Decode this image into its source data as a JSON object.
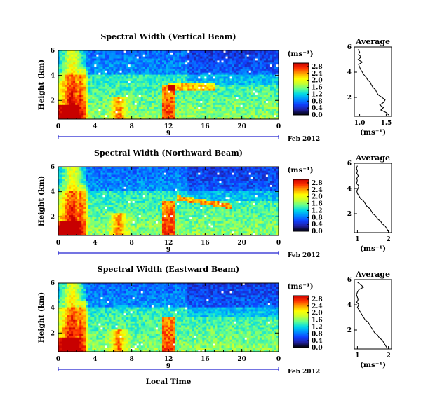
{
  "chart_data": [
    {
      "type": "heatmap",
      "title": "Spectral Width (Vertical Beam)",
      "ylabel": "Height (km)",
      "xlabel": "Local Time",
      "x_ticks": [
        "0",
        "4",
        "8",
        "12",
        "16",
        "20",
        "0"
      ],
      "y_ticks": [
        "2",
        "4",
        "6"
      ],
      "xlim": [
        0,
        24
      ],
      "ylim": [
        0.5,
        6.0
      ],
      "day_label": "9",
      "month_label": "Feb 2012",
      "colorbar": {
        "unit": "(ms⁻¹)",
        "ticks": [
          "0.0",
          "0.4",
          "0.8",
          "1.2",
          "1.6",
          "2.0",
          "2.4",
          "2.8"
        ],
        "range": [
          0,
          3.0
        ]
      },
      "profile": {
        "title": "Average",
        "xlabel": "(ms⁻¹)",
        "x_ticks": [
          "1.0",
          "1.5"
        ],
        "xlim": [
          0.9,
          1.6
        ],
        "y_ticks": [
          "2",
          "4",
          "6"
        ],
        "ylim": [
          0.5,
          6.0
        ],
        "height": [
          0.6,
          0.8,
          1.0,
          1.2,
          1.4,
          1.6,
          1.8,
          2.0,
          2.2,
          2.4,
          2.6,
          2.8,
          3.0,
          3.2,
          3.4,
          3.6,
          3.8,
          4.0,
          4.2,
          4.4,
          4.6,
          4.8,
          5.0,
          5.2,
          5.4,
          5.6,
          5.8
        ],
        "width": [
          1.55,
          1.5,
          1.4,
          1.45,
          1.38,
          1.45,
          1.48,
          1.42,
          1.35,
          1.32,
          1.3,
          1.25,
          1.22,
          1.2,
          1.15,
          1.12,
          1.08,
          1.05,
          1.02,
          1.0,
          0.98,
          1.05,
          0.97,
          1.03,
          0.98,
          1.0,
          0.97
        ]
      }
    },
    {
      "type": "heatmap",
      "title": "Spectral Width (Northward Beam)",
      "ylabel": "Height (km)",
      "xlabel": "Local Time",
      "x_ticks": [
        "0",
        "4",
        "8",
        "12",
        "16",
        "20",
        "0"
      ],
      "y_ticks": [
        "2",
        "4",
        "6"
      ],
      "xlim": [
        0,
        24
      ],
      "ylim": [
        0.5,
        6.0
      ],
      "day_label": "9",
      "month_label": "Feb 2012",
      "colorbar": {
        "unit": "(ms⁻¹)",
        "ticks": [
          "0.0",
          "0.4",
          "0.8",
          "1.2",
          "1.6",
          "2.0",
          "2.4",
          "2.8"
        ],
        "range": [
          0,
          3.0
        ]
      },
      "profile": {
        "title": "Average",
        "xlabel": "(ms⁻¹)",
        "x_ticks": [
          "1",
          "2"
        ],
        "xlim": [
          0.9,
          2.1
        ],
        "y_ticks": [
          "2",
          "4",
          "6"
        ],
        "ylim": [
          0.5,
          6.0
        ],
        "height": [
          0.6,
          0.8,
          1.0,
          1.2,
          1.4,
          1.6,
          1.8,
          2.0,
          2.2,
          2.4,
          2.6,
          2.8,
          3.0,
          3.2,
          3.4,
          3.6,
          3.8,
          4.0,
          4.2,
          4.4,
          4.6,
          4.8,
          5.0,
          5.2,
          5.4,
          5.6,
          5.8
        ],
        "width": [
          2.0,
          1.95,
          1.9,
          1.8,
          1.75,
          1.65,
          1.6,
          1.5,
          1.45,
          1.4,
          1.3,
          1.25,
          1.2,
          1.1,
          1.05,
          1.0,
          0.98,
          1.02,
          1.05,
          0.97,
          1.0,
          0.98,
          1.03,
          0.98,
          1.0,
          0.97,
          1.0
        ]
      }
    },
    {
      "type": "heatmap",
      "title": "Spectral Width (Eastward Beam)",
      "ylabel": "Height (km)",
      "xlabel": "Local Time",
      "x_ticks": [
        "0",
        "4",
        "8",
        "12",
        "16",
        "20",
        "0"
      ],
      "y_ticks": [
        "2",
        "4",
        "6"
      ],
      "xlim": [
        0,
        24
      ],
      "ylim": [
        0.5,
        6.0
      ],
      "day_label": "9",
      "month_label": "Feb 2012",
      "colorbar": {
        "unit": "(ms⁻¹)",
        "ticks": [
          "0.0",
          "0.4",
          "0.8",
          "1.2",
          "1.6",
          "2.0",
          "2.4",
          "2.8"
        ],
        "range": [
          0,
          3.0
        ]
      },
      "profile": {
        "title": "Average",
        "xlabel": "(ms⁻¹)",
        "x_ticks": [
          "1",
          "2"
        ],
        "xlim": [
          0.9,
          2.1
        ],
        "y_ticks": [
          "2",
          "4",
          "6"
        ],
        "ylim": [
          0.5,
          6.0
        ],
        "height": [
          0.6,
          0.8,
          1.0,
          1.2,
          1.4,
          1.6,
          1.8,
          2.0,
          2.2,
          2.4,
          2.6,
          2.8,
          3.0,
          3.2,
          3.4,
          3.6,
          3.8,
          4.0,
          4.2,
          4.4,
          4.6,
          4.8,
          5.0,
          5.2,
          5.4,
          5.6,
          5.8
        ],
        "width": [
          1.95,
          1.9,
          1.85,
          1.8,
          1.7,
          1.65,
          1.55,
          1.5,
          1.45,
          1.4,
          1.35,
          1.25,
          1.2,
          1.15,
          1.1,
          1.05,
          1.0,
          1.05,
          0.98,
          1.02,
          1.0,
          0.97,
          1.0,
          1.05,
          1.2,
          1.1,
          1.0
        ]
      }
    }
  ],
  "colors": {
    "colormap": [
      "#000000",
      "#2020a0",
      "#1040ff",
      "#0090ff",
      "#00d8e8",
      "#60ff90",
      "#c8ff30",
      "#ffff00",
      "#ffa000",
      "#ff3000",
      "#c80000"
    ],
    "axis": "#000000",
    "bracket": "#2020d0"
  }
}
